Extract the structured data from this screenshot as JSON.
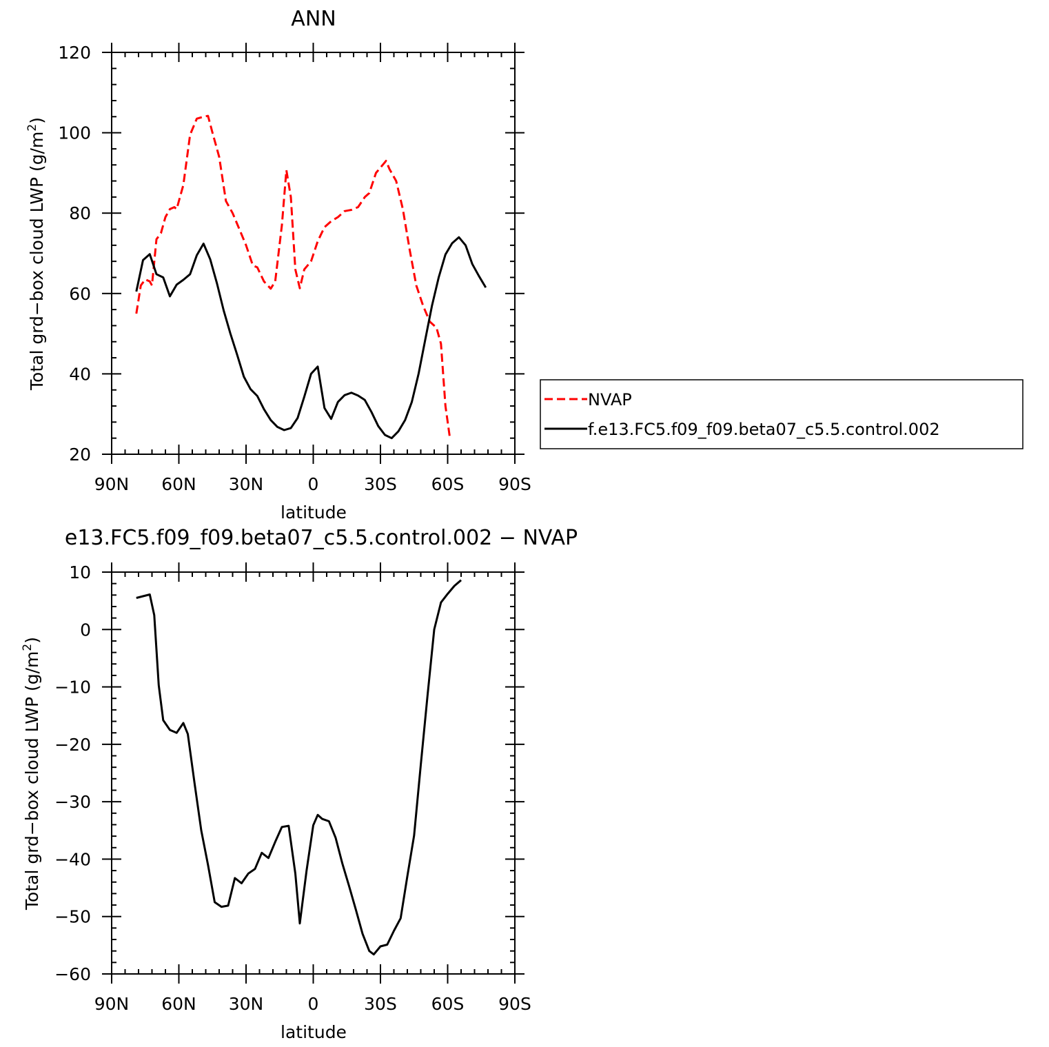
{
  "chart_data": [
    {
      "type": "line",
      "title": "ANN",
      "xlabel": "latitude",
      "ylabel": "Total grd−box cloud LWP (g/m",
      "ylabel_sup": "2",
      "ylabel_end": ")",
      "xlim": [
        -90,
        90
      ],
      "ylim": [
        20,
        120
      ],
      "xticks": [
        -90,
        -60,
        -30,
        0,
        30,
        60,
        90
      ],
      "xtick_labels": [
        "90N",
        "60N",
        "30N",
        "0",
        "30S",
        "60S",
        "90S"
      ],
      "yticks": [
        20,
        40,
        60,
        80,
        100,
        120
      ],
      "ytick_labels": [
        "20",
        "40",
        "60",
        "80",
        "100",
        "120"
      ],
      "legend_position": "right",
      "series": [
        {
          "name": "NVAP",
          "color": "#ff0000",
          "dash": "dashed",
          "points": [
            [
              -79,
              55
            ],
            [
              -77,
              62
            ],
            [
              -75,
              63.5
            ],
            [
              -73,
              63
            ],
            [
              -72,
              62
            ],
            [
              -70,
              73.5
            ],
            [
              -68,
              75
            ],
            [
              -66,
              79
            ],
            [
              -64,
              81
            ],
            [
              -62,
              81.5
            ],
            [
              -61,
              81
            ],
            [
              -58,
              87
            ],
            [
              -55,
              99.5
            ],
            [
              -52,
              103.5
            ],
            [
              -49,
              104
            ],
            [
              -47,
              104.2
            ],
            [
              -45,
              100
            ],
            [
              -42,
              94
            ],
            [
              -39,
              83
            ],
            [
              -36,
              80
            ],
            [
              -33,
              76
            ],
            [
              -30,
              72
            ],
            [
              -27,
              67
            ],
            [
              -25,
              66.5
            ],
            [
              -22,
              63
            ],
            [
              -19,
              61.2
            ],
            [
              -17,
              63
            ],
            [
              -14,
              77
            ],
            [
              -12,
              90.7
            ],
            [
              -10,
              84
            ],
            [
              -8,
              66
            ],
            [
              -6,
              61.3
            ],
            [
              -4,
              66
            ],
            [
              -1,
              68
            ],
            [
              2,
              73
            ],
            [
              5,
              76.5
            ],
            [
              8,
              78
            ],
            [
              11,
              79
            ],
            [
              14,
              80.5
            ],
            [
              17,
              80.8
            ],
            [
              20,
              81.5
            ],
            [
              23,
              84
            ],
            [
              25,
              85
            ],
            [
              28,
              90
            ],
            [
              31,
              92
            ],
            [
              32.5,
              93
            ],
            [
              34,
              91
            ],
            [
              37,
              88
            ],
            [
              40,
              81
            ],
            [
              43,
              71
            ],
            [
              46,
              62
            ],
            [
              49,
              57
            ],
            [
              52,
              53
            ],
            [
              55,
              51.5
            ],
            [
              57,
              47.5
            ],
            [
              59,
              32
            ],
            [
              61,
              24
            ]
          ]
        },
        {
          "name": "f.e13.FC5.f09_f09.beta07_c5.5.control.002",
          "color": "#000000",
          "dash": "solid",
          "points": [
            [
              -79,
              60.5
            ],
            [
              -76,
              68.3
            ],
            [
              -73,
              69.8
            ],
            [
              -70,
              64.8
            ],
            [
              -67,
              64
            ],
            [
              -64,
              59.3
            ],
            [
              -61,
              62.2
            ],
            [
              -58,
              63.4
            ],
            [
              -55,
              64.8
            ],
            [
              -52,
              69.5
            ],
            [
              -49,
              72.4
            ],
            [
              -46,
              68.5
            ],
            [
              -43,
              62.5
            ],
            [
              -40,
              55.8
            ],
            [
              -37,
              50
            ],
            [
              -34,
              44.8
            ],
            [
              -31,
              39.3
            ],
            [
              -28,
              36.2
            ],
            [
              -25,
              34.5
            ],
            [
              -22,
              31.2
            ],
            [
              -19,
              28.5
            ],
            [
              -16,
              26.8
            ],
            [
              -13,
              26
            ],
            [
              -10,
              26.5
            ],
            [
              -7,
              29
            ],
            [
              -4,
              34.3
            ],
            [
              -1,
              40
            ],
            [
              2,
              41.8
            ],
            [
              5,
              31.5
            ],
            [
              8,
              28.8
            ],
            [
              11,
              33
            ],
            [
              14,
              34.7
            ],
            [
              17,
              35.3
            ],
            [
              20,
              34.6
            ],
            [
              23,
              33.5
            ],
            [
              26,
              30.5
            ],
            [
              29,
              27
            ],
            [
              32,
              24.8
            ],
            [
              35,
              24
            ],
            [
              38,
              25.7
            ],
            [
              41,
              28.5
            ],
            [
              44,
              33
            ],
            [
              47,
              40
            ],
            [
              50,
              48.5
            ],
            [
              53,
              57
            ],
            [
              56,
              64
            ],
            [
              59,
              69.7
            ],
            [
              62,
              72.5
            ],
            [
              65,
              74
            ],
            [
              68,
              72
            ],
            [
              71,
              67.3
            ],
            [
              74,
              64.3
            ],
            [
              77,
              61.5
            ]
          ]
        }
      ]
    },
    {
      "type": "line",
      "title": "e13.FC5.f09_f09.beta07_c5.5.control.002  −  NVAP",
      "xlabel": "latitude",
      "ylabel": "Total grd−box cloud LWP (g/m",
      "ylabel_sup": "2",
      "ylabel_end": ")",
      "xlim": [
        -90,
        90
      ],
      "ylim": [
        -60,
        10
      ],
      "xticks": [
        -90,
        -60,
        -30,
        0,
        30,
        60,
        90
      ],
      "xtick_labels": [
        "90N",
        "60N",
        "30N",
        "0",
        "30S",
        "60S",
        "90S"
      ],
      "yticks": [
        -60,
        -50,
        -40,
        -30,
        -20,
        -10,
        0,
        10
      ],
      "ytick_labels": [
        "−60",
        "−50",
        "−40",
        "−30",
        "−20",
        "−10",
        "0",
        "10"
      ],
      "series": [
        {
          "color": "#000000",
          "dash": "solid",
          "points": [
            [
              -79,
              5.5
            ],
            [
              -76,
              5.8
            ],
            [
              -73,
              6.1
            ],
            [
              -71,
              2.5
            ],
            [
              -69,
              -9.7
            ],
            [
              -67,
              -15.8
            ],
            [
              -64,
              -17.5
            ],
            [
              -61,
              -18
            ],
            [
              -58,
              -16.3
            ],
            [
              -56,
              -18.2
            ],
            [
              -53,
              -26.8
            ],
            [
              -50,
              -35
            ],
            [
              -47,
              -41
            ],
            [
              -44,
              -47.5
            ],
            [
              -41,
              -48.3
            ],
            [
              -38,
              -48.1
            ],
            [
              -35,
              -43.3
            ],
            [
              -32,
              -44.2
            ],
            [
              -29,
              -42.5
            ],
            [
              -26,
              -41.7
            ],
            [
              -23,
              -38.9
            ],
            [
              -20,
              -39.8
            ],
            [
              -17,
              -37
            ],
            [
              -14,
              -34.4
            ],
            [
              -11,
              -34.2
            ],
            [
              -8,
              -42.5
            ],
            [
              -6,
              -51.2
            ],
            [
              -3,
              -42
            ],
            [
              0,
              -34.1
            ],
            [
              2,
              -32.3
            ],
            [
              4,
              -33
            ],
            [
              7,
              -33.4
            ],
            [
              10,
              -36.3
            ],
            [
              13,
              -40.8
            ],
            [
              16,
              -44.7
            ],
            [
              19,
              -48.8
            ],
            [
              22,
              -53
            ],
            [
              25,
              -56
            ],
            [
              27,
              -56.6
            ],
            [
              30,
              -55.2
            ],
            [
              33,
              -54.9
            ],
            [
              36,
              -52.5
            ],
            [
              39,
              -50.3
            ],
            [
              42,
              -43
            ],
            [
              45,
              -35.9
            ],
            [
              48,
              -23.6
            ],
            [
              51,
              -11.5
            ],
            [
              54,
              0
            ],
            [
              57,
              4.7
            ],
            [
              60,
              6.2
            ],
            [
              63,
              7.6
            ],
            [
              66,
              8.6
            ]
          ]
        }
      ]
    }
  ]
}
